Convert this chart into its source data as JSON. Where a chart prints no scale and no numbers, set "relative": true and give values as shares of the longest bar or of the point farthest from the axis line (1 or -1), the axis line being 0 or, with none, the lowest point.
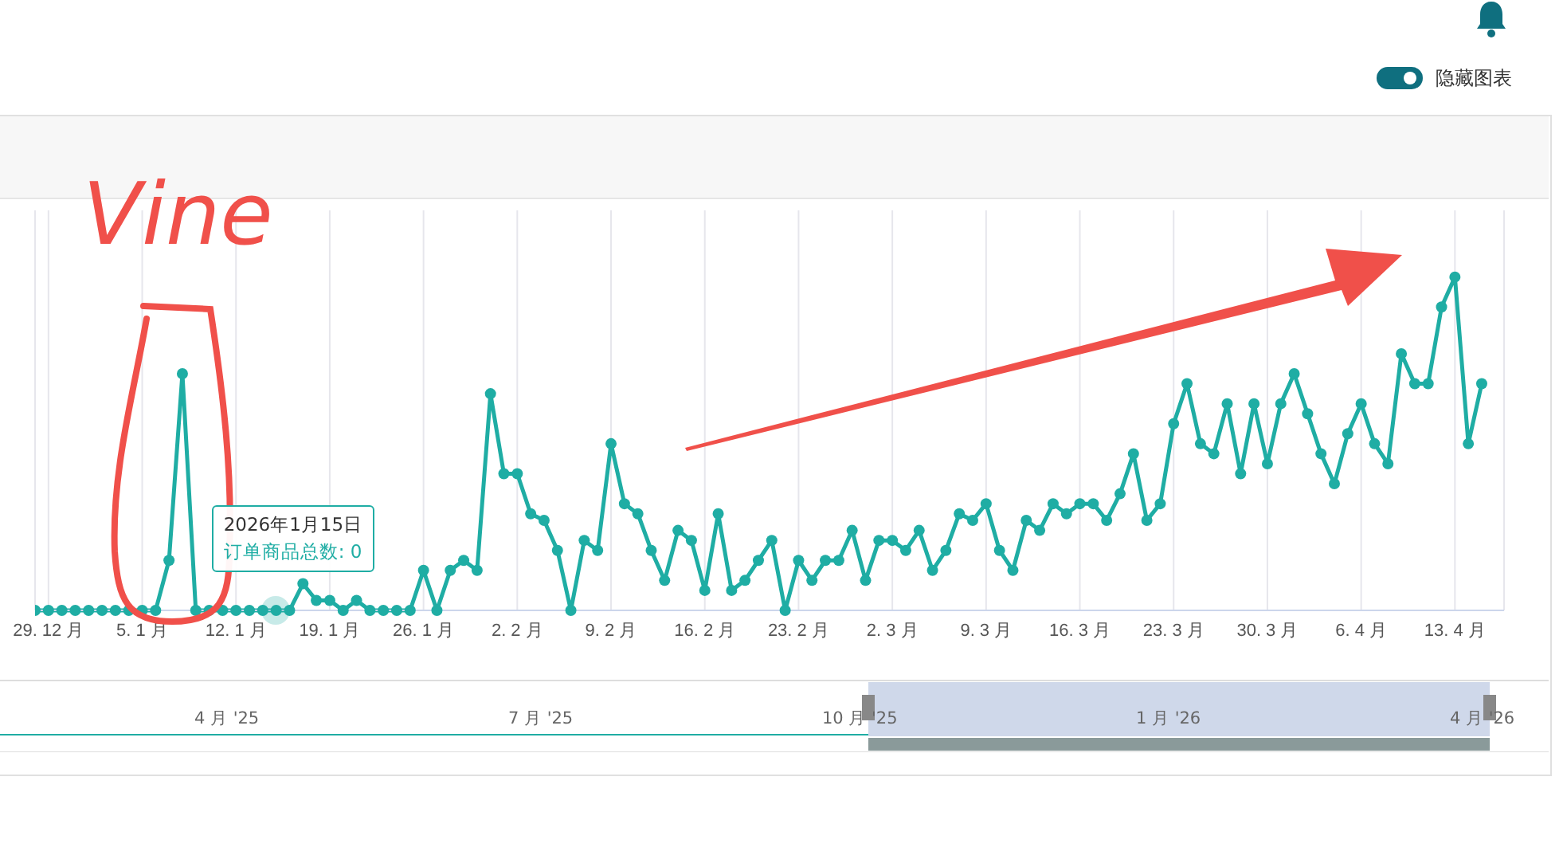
{
  "chart_data": {
    "type": "line",
    "relative": true,
    "x": [
      "2025-12-28",
      "2025-12-29",
      "2025-12-30",
      "2025-12-31",
      "2026-01-01",
      "2026-01-02",
      "2026-01-03",
      "2026-01-04",
      "2026-01-05",
      "2026-01-06",
      "2026-01-07",
      "2026-01-08",
      "2026-01-09",
      "2026-01-10",
      "2026-01-11",
      "2026-01-12",
      "2026-01-13",
      "2026-01-14",
      "2026-01-15",
      "2026-01-16",
      "2026-01-17",
      "2026-01-18",
      "2026-01-19",
      "2026-01-20",
      "2026-01-21",
      "2026-01-22",
      "2026-01-23",
      "2026-01-24",
      "2026-01-25",
      "2026-01-26",
      "2026-01-27",
      "2026-01-28",
      "2026-01-29",
      "2026-01-30",
      "2026-01-31",
      "2026-02-01",
      "2026-02-02",
      "2026-02-03",
      "2026-02-04",
      "2026-02-05",
      "2026-02-06",
      "2026-02-07",
      "2026-02-08",
      "2026-02-09",
      "2026-02-10",
      "2026-02-11",
      "2026-02-12",
      "2026-02-13",
      "2026-02-14",
      "2026-02-15",
      "2026-02-16",
      "2026-02-17",
      "2026-02-18",
      "2026-02-19",
      "2026-02-20",
      "2026-02-21",
      "2026-02-22",
      "2026-02-23",
      "2026-02-24",
      "2026-02-25",
      "2026-02-26",
      "2026-02-27",
      "2026-02-28",
      "2026-03-01",
      "2026-03-02",
      "2026-03-03",
      "2026-03-04",
      "2026-03-05",
      "2026-03-06",
      "2026-03-07",
      "2026-03-08",
      "2026-03-09",
      "2026-03-10",
      "2026-03-11",
      "2026-03-12",
      "2026-03-13",
      "2026-03-14",
      "2026-03-15",
      "2026-03-16",
      "2026-03-17",
      "2026-03-18",
      "2026-03-19",
      "2026-03-20",
      "2026-03-21",
      "2026-03-22",
      "2026-03-23",
      "2026-03-24",
      "2026-03-25",
      "2026-03-26",
      "2026-03-27",
      "2026-03-28",
      "2026-03-29",
      "2026-03-30",
      "2026-03-31",
      "2026-04-01",
      "2026-04-02",
      "2026-04-03",
      "2026-04-04",
      "2026-04-05",
      "2026-04-06",
      "2026-04-07",
      "2026-04-08",
      "2026-04-09",
      "2026-04-10",
      "2026-04-11",
      "2026-04-12",
      "2026-04-13",
      "2026-04-14",
      "2026-04-15"
    ],
    "series": [
      {
        "color": "#1fada4",
        "values": [
          0,
          0,
          0,
          0,
          0,
          0,
          0,
          0,
          0,
          0,
          0.15,
          0.71,
          0,
          0,
          0,
          0,
          0,
          0,
          0,
          0,
          0.08,
          0.03,
          0.03,
          0,
          0.03,
          0,
          0,
          0,
          0,
          0.12,
          0,
          0.12,
          0.15,
          0.12,
          0.65,
          0.41,
          0.41,
          0.29,
          0.27,
          0.18,
          0,
          0.21,
          0.18,
          0.5,
          0.32,
          0.29,
          0.18,
          0.09,
          0.24,
          0.21,
          0.06,
          0.29,
          0.06,
          0.09,
          0.15,
          0.21,
          0,
          0.15,
          0.09,
          0.15,
          0.15,
          0.24,
          0.09,
          0.21,
          0.21,
          0.18,
          0.24,
          0.12,
          0.18,
          0.29,
          0.27,
          0.32,
          0.18,
          0.12,
          0.27,
          0.24,
          0.32,
          0.29,
          0.32,
          0.32,
          0.27,
          0.35,
          0.47,
          0.27,
          0.32,
          0.56,
          0.68,
          0.5,
          0.47,
          0.62,
          0.41,
          0.62,
          0.44,
          0.62,
          0.71,
          0.59,
          0.47,
          0.38,
          0.53,
          0.62,
          0.5,
          0.44,
          0.77,
          0.68,
          0.68,
          0.91,
          1,
          0.5,
          0.68
        ]
      }
    ],
    "xlim": [
      "2025-12-28",
      "2026-04-16T16:00"
    ],
    "xticks": [
      {
        "value": "2025-12-29",
        "label": "29. 12 月"
      },
      {
        "value": "2026-01-05",
        "label": "5. 1 月"
      },
      {
        "value": "2026-01-12",
        "label": "12. 1 月"
      },
      {
        "value": "2026-01-19",
        "label": "19. 1 月"
      },
      {
        "value": "2026-01-26",
        "label": "26. 1 月"
      },
      {
        "value": "2026-02-02",
        "label": "2. 2 月"
      },
      {
        "value": "2026-02-09",
        "label": "9. 2 月"
      },
      {
        "value": "2026-02-16",
        "label": "16. 2 月"
      },
      {
        "value": "2026-02-23",
        "label": "23. 2 月"
      },
      {
        "value": "2026-03-02",
        "label": "2. 3 月"
      },
      {
        "value": "2026-03-09",
        "label": "9. 3 月"
      },
      {
        "value": "2026-03-16",
        "label": "16. 3 月"
      },
      {
        "value": "2026-03-23",
        "label": "23. 3 月"
      },
      {
        "value": "2026-03-30",
        "label": "30. 3 月"
      },
      {
        "value": "2026-04-06",
        "label": "6. 4 月"
      },
      {
        "value": "2026-04-13",
        "label": "13. 4 月"
      }
    ],
    "grid": "x",
    "marker": "circle",
    "line_style": "solid",
    "annotations": [
      "Vine",
      "2026年1月15日",
      "订单商品总数: 0",
      "隐藏图表",
      "4 月 '25",
      "7 月 '25",
      "10 月 '25",
      "1 月 '26",
      "4 月 '26"
    ]
  }
}
